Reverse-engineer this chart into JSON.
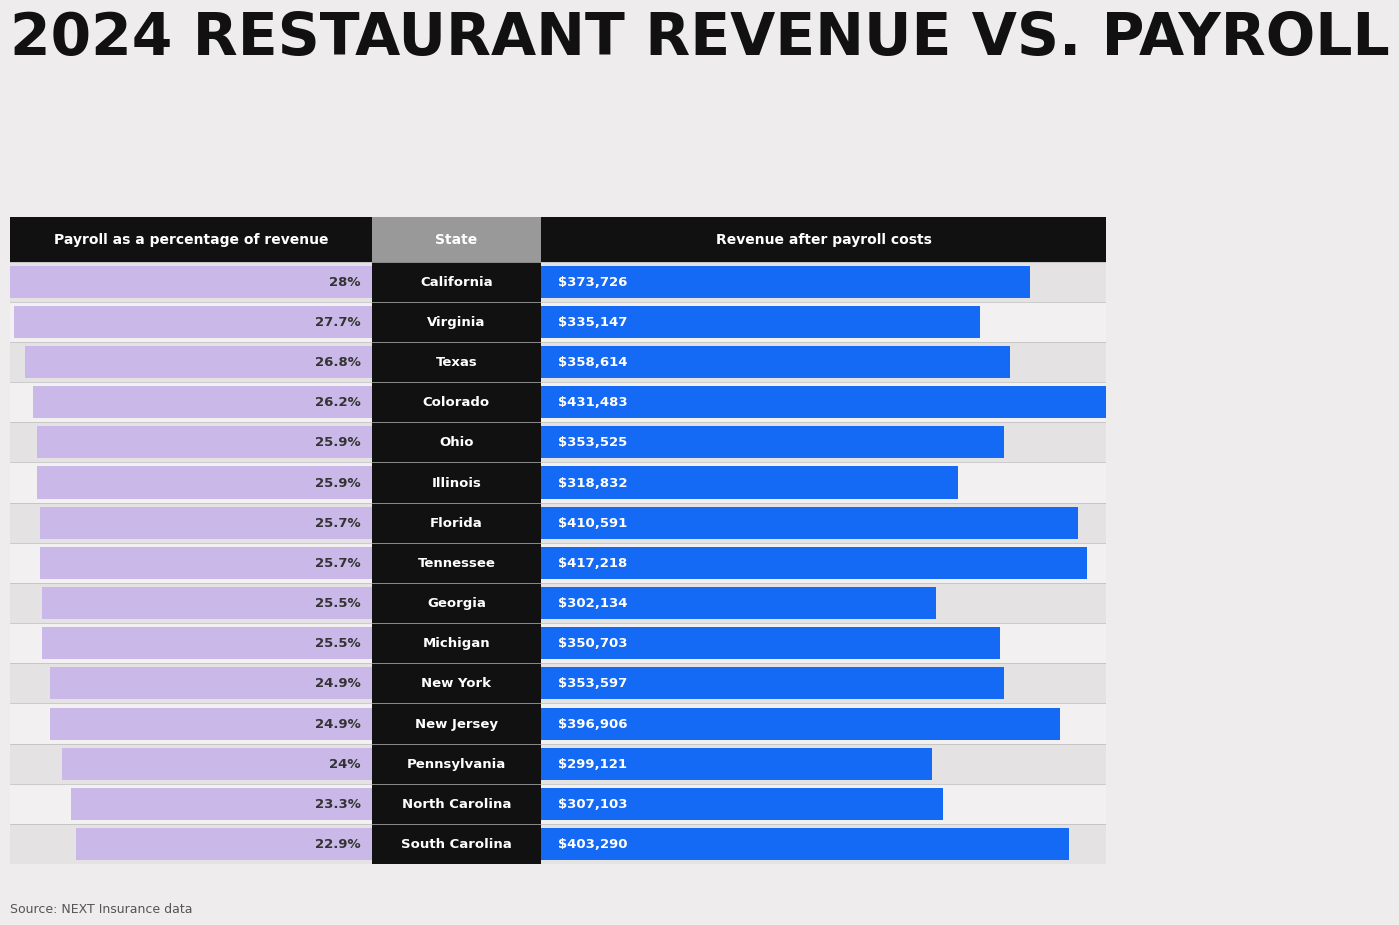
{
  "title": "2024 RESTAURANT REVENUE VS. PAYROLL",
  "source": "Source: NEXT Insurance data",
  "header_left": "Payroll as a percentage of revenue",
  "header_center": "State",
  "header_right": "Revenue after payroll costs",
  "states": [
    "California",
    "Virginia",
    "Texas",
    "Colorado",
    "Ohio",
    "Illinois",
    "Florida",
    "Tennessee",
    "Georgia",
    "Michigan",
    "New York",
    "New Jersey",
    "Pennsylvania",
    "North Carolina",
    "South Carolina"
  ],
  "payroll_pct": [
    28.0,
    27.7,
    26.8,
    26.2,
    25.9,
    25.9,
    25.7,
    25.7,
    25.5,
    25.5,
    24.9,
    24.9,
    24.0,
    23.3,
    22.9
  ],
  "revenue": [
    373726,
    335147,
    358614,
    431483,
    353525,
    318832,
    410591,
    417218,
    302134,
    350703,
    353597,
    396906,
    299121,
    307103,
    403290
  ],
  "payroll_labels": [
    "28%",
    "27.7%",
    "26.8%",
    "26.2%",
    "25.9%",
    "25.9%",
    "25.7%",
    "25.7%",
    "25.5%",
    "25.5%",
    "24.9%",
    "24.9%",
    "24%",
    "23.3%",
    "22.9%"
  ],
  "revenue_labels": [
    "$373,726",
    "$335,147",
    "$358,614",
    "$431,483",
    "$353,525",
    "$318,832",
    "$410,591",
    "$417,218",
    "$302,134",
    "$350,703",
    "$353,597",
    "$396,906",
    "$299,121",
    "$307,103",
    "$403,290"
  ],
  "bg_color": "#eeecec",
  "header_bg": "#111111",
  "header_text_color": "#ffffff",
  "center_header_bg": "#999999",
  "row_bg_even": "#e4e2e2",
  "row_bg_odd": "#f2f0f0",
  "state_bg": "#111111",
  "state_text_color": "#ffffff",
  "payroll_bar_color": "#c9b8e8",
  "revenue_bar_color": "#1469f5",
  "revenue_text_color": "#ffffff",
  "payroll_text_color": "#333333",
  "max_revenue": 431483,
  "max_payroll_pct": 28.0,
  "title_fontsize": 42,
  "title_color": "#111111"
}
